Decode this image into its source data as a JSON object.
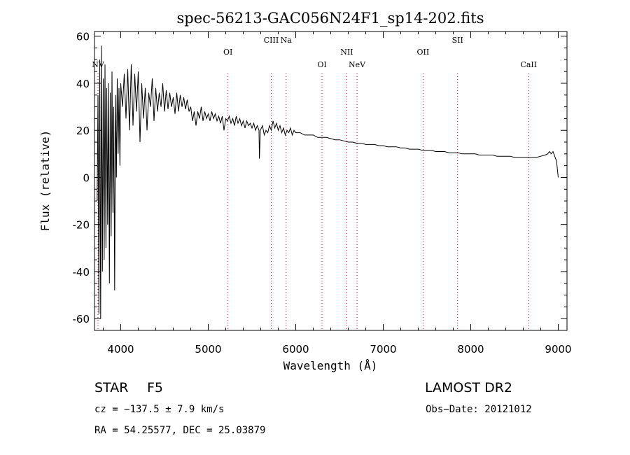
{
  "chart_data": {
    "type": "line",
    "title": "spec-56213-GAC056N24F1_sp14-202.fits",
    "xlabel": "Wavelength (Å)",
    "ylabel": "Flux (relative)",
    "xlim": [
      3700,
      9100
    ],
    "ylim": [
      -65,
      62
    ],
    "xticks": [
      4000,
      5000,
      6000,
      7000,
      8000,
      9000
    ],
    "yticks": [
      -60,
      -40,
      -20,
      0,
      20,
      40,
      60
    ],
    "grid": false,
    "line_color": "#000000",
    "marker_color": "#cc0000",
    "series": [
      {
        "points": [
          [
            3730,
            -10
          ],
          [
            3740,
            35
          ],
          [
            3750,
            -58
          ],
          [
            3760,
            50
          ],
          [
            3770,
            -60
          ],
          [
            3780,
            56
          ],
          [
            3790,
            -40
          ],
          [
            3800,
            42
          ],
          [
            3810,
            -35
          ],
          [
            3820,
            48
          ],
          [
            3830,
            -30
          ],
          [
            3840,
            38
          ],
          [
            3850,
            -20
          ],
          [
            3860,
            40
          ],
          [
            3870,
            -45
          ],
          [
            3880,
            36
          ],
          [
            3890,
            -25
          ],
          [
            3900,
            45
          ],
          [
            3910,
            -15
          ],
          [
            3920,
            30
          ],
          [
            3930,
            -48
          ],
          [
            3940,
            35
          ],
          [
            3950,
            0
          ],
          [
            3960,
            42
          ],
          [
            3970,
            10
          ],
          [
            3980,
            38
          ],
          [
            3990,
            5
          ],
          [
            4000,
            40
          ],
          [
            4020,
            30
          ],
          [
            4040,
            44
          ],
          [
            4060,
            25
          ],
          [
            4080,
            46
          ],
          [
            4100,
            20
          ],
          [
            4120,
            48
          ],
          [
            4140,
            22
          ],
          [
            4160,
            44
          ],
          [
            4180,
            28
          ],
          [
            4200,
            45
          ],
          [
            4220,
            15
          ],
          [
            4240,
            40
          ],
          [
            4260,
            25
          ],
          [
            4280,
            38
          ],
          [
            4300,
            20
          ],
          [
            4320,
            36
          ],
          [
            4340,
            30
          ],
          [
            4360,
            42
          ],
          [
            4380,
            24
          ],
          [
            4400,
            38
          ],
          [
            4420,
            28
          ],
          [
            4440,
            36
          ],
          [
            4460,
            30
          ],
          [
            4480,
            40
          ],
          [
            4500,
            28
          ],
          [
            4520,
            37
          ],
          [
            4540,
            29
          ],
          [
            4560,
            36
          ],
          [
            4580,
            30
          ],
          [
            4600,
            34
          ],
          [
            4620,
            27
          ],
          [
            4640,
            36
          ],
          [
            4660,
            28
          ],
          [
            4680,
            35
          ],
          [
            4700,
            30
          ],
          [
            4720,
            34
          ],
          [
            4740,
            29
          ],
          [
            4760,
            33
          ],
          [
            4780,
            28
          ],
          [
            4800,
            30
          ],
          [
            4820,
            24
          ],
          [
            4840,
            28
          ],
          [
            4860,
            22
          ],
          [
            4880,
            28
          ],
          [
            4900,
            25
          ],
          [
            4920,
            30
          ],
          [
            4940,
            24
          ],
          [
            4960,
            28
          ],
          [
            4980,
            25
          ],
          [
            5000,
            27
          ],
          [
            5020,
            24
          ],
          [
            5040,
            28
          ],
          [
            5060,
            25
          ],
          [
            5080,
            27
          ],
          [
            5100,
            24
          ],
          [
            5120,
            26
          ],
          [
            5140,
            23
          ],
          [
            5160,
            26
          ],
          [
            5180,
            20
          ],
          [
            5200,
            25
          ],
          [
            5220,
            24
          ],
          [
            5240,
            26
          ],
          [
            5260,
            23
          ],
          [
            5280,
            25
          ],
          [
            5300,
            22
          ],
          [
            5320,
            26
          ],
          [
            5340,
            23
          ],
          [
            5360,
            25
          ],
          [
            5380,
            22
          ],
          [
            5400,
            24
          ],
          [
            5420,
            21
          ],
          [
            5440,
            24
          ],
          [
            5460,
            22
          ],
          [
            5480,
            23
          ],
          [
            5500,
            21
          ],
          [
            5520,
            23
          ],
          [
            5540,
            20
          ],
          [
            5560,
            22
          ],
          [
            5580,
            20
          ],
          [
            5585,
            8
          ],
          [
            5595,
            20
          ],
          [
            5620,
            22
          ],
          [
            5640,
            18
          ],
          [
            5660,
            20
          ],
          [
            5680,
            19
          ],
          [
            5700,
            22
          ],
          [
            5720,
            20
          ],
          [
            5740,
            24
          ],
          [
            5760,
            21
          ],
          [
            5780,
            23
          ],
          [
            5800,
            20
          ],
          [
            5820,
            22
          ],
          [
            5840,
            19
          ],
          [
            5860,
            21
          ],
          [
            5880,
            18
          ],
          [
            5900,
            20
          ],
          [
            5920,
            19
          ],
          [
            5940,
            21
          ],
          [
            5960,
            18
          ],
          [
            5980,
            20
          ],
          [
            6000,
            19
          ],
          [
            6050,
            19
          ],
          [
            6100,
            18
          ],
          [
            6150,
            18
          ],
          [
            6200,
            18
          ],
          [
            6250,
            17
          ],
          [
            6300,
            17
          ],
          [
            6350,
            17
          ],
          [
            6400,
            16.5
          ],
          [
            6450,
            16
          ],
          [
            6500,
            16
          ],
          [
            6550,
            15.5
          ],
          [
            6600,
            15
          ],
          [
            6650,
            15
          ],
          [
            6700,
            14.5
          ],
          [
            6750,
            14.5
          ],
          [
            6800,
            14
          ],
          [
            6850,
            14
          ],
          [
            6900,
            14
          ],
          [
            6950,
            13.5
          ],
          [
            7000,
            13.5
          ],
          [
            7050,
            13
          ],
          [
            7100,
            13
          ],
          [
            7150,
            13
          ],
          [
            7200,
            12.5
          ],
          [
            7250,
            12.5
          ],
          [
            7300,
            12
          ],
          [
            7350,
            12
          ],
          [
            7400,
            12
          ],
          [
            7450,
            11.5
          ],
          [
            7500,
            11.5
          ],
          [
            7550,
            11.5
          ],
          [
            7600,
            11
          ],
          [
            7650,
            11
          ],
          [
            7700,
            11
          ],
          [
            7750,
            10.5
          ],
          [
            7800,
            10.5
          ],
          [
            7850,
            10.5
          ],
          [
            7900,
            10
          ],
          [
            7950,
            10
          ],
          [
            8000,
            10
          ],
          [
            8050,
            10
          ],
          [
            8100,
            9.5
          ],
          [
            8150,
            9.5
          ],
          [
            8200,
            9.5
          ],
          [
            8250,
            9.5
          ],
          [
            8300,
            9
          ],
          [
            8350,
            9
          ],
          [
            8400,
            9
          ],
          [
            8450,
            9
          ],
          [
            8500,
            8.5
          ],
          [
            8550,
            8.5
          ],
          [
            8600,
            8.5
          ],
          [
            8650,
            8.5
          ],
          [
            8700,
            8.5
          ],
          [
            8750,
            8.5
          ],
          [
            8800,
            9
          ],
          [
            8850,
            9.5
          ],
          [
            8880,
            10
          ],
          [
            8900,
            11
          ],
          [
            8920,
            10
          ],
          [
            8940,
            11
          ],
          [
            8960,
            9
          ],
          [
            8980,
            7
          ],
          [
            9000,
            0
          ]
        ]
      }
    ],
    "lines": [
      {
        "label": "NV",
        "wave": 3740,
        "row": "low"
      },
      {
        "label": "OI",
        "wave": 5225,
        "row": "mid"
      },
      {
        "label": "CIII",
        "wave": 5720,
        "row": "high"
      },
      {
        "label": "Na",
        "wave": 5890,
        "row": "high"
      },
      {
        "label": "OI",
        "wave": 6300,
        "row": "low"
      },
      {
        "label": "NII",
        "wave": 6583,
        "row": "mid"
      },
      {
        "label": "NeV",
        "wave": 6700,
        "row": "low"
      },
      {
        "label": "OII",
        "wave": 7455,
        "row": "mid"
      },
      {
        "label": "SII",
        "wave": 7850,
        "row": "high"
      },
      {
        "label": "CaII",
        "wave": 8662,
        "row": "low"
      }
    ]
  },
  "info": {
    "object_class": "STAR",
    "subclass": "F5",
    "survey": "LAMOST DR2",
    "cz": "cz = −137.5 ± 7.9 km/s",
    "obs_date": "Obs−Date: 20121012",
    "coords": "RA =  54.25577, DEC =  25.03879"
  }
}
